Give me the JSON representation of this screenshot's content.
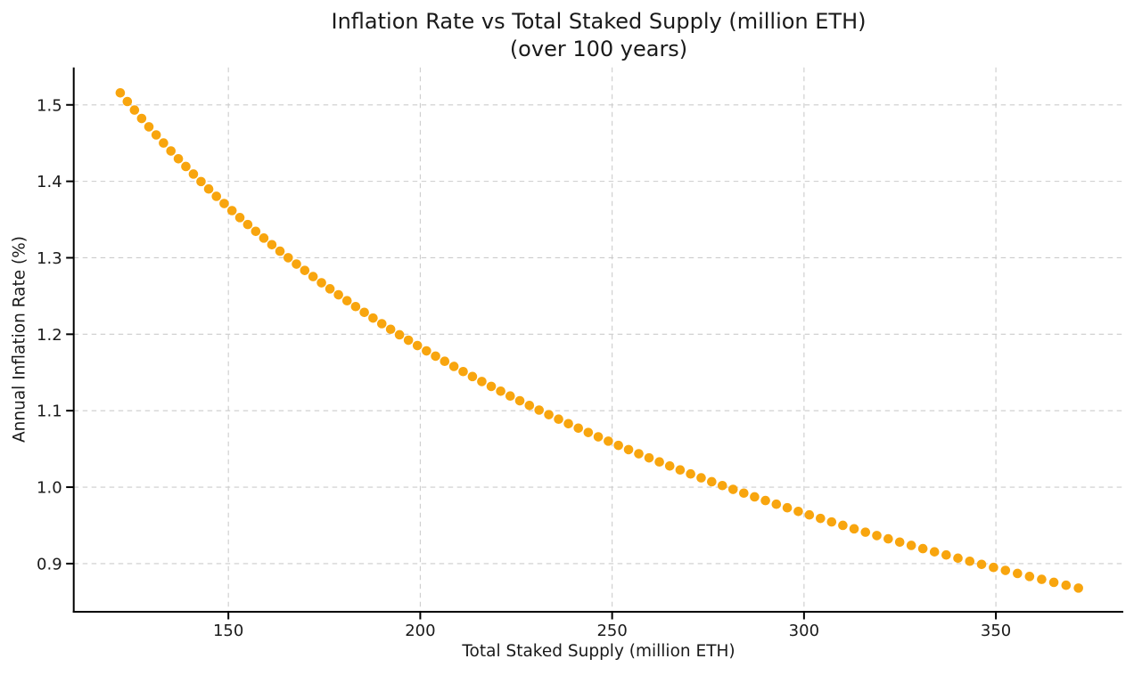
{
  "chart_data": {
    "type": "scatter",
    "title": "Inflation Rate vs Total Staked Supply (million ETH)",
    "subtitle": "(over 100 years)",
    "xlabel": "Total Staked Supply (million ETH)",
    "ylabel": "Annual Inflation Rate (%)",
    "xlim": [
      109.7,
      383.2
    ],
    "ylim": [
      0.837,
      1.549
    ],
    "xticks": [
      150,
      200,
      250,
      300,
      350
    ],
    "xtick_labels": [
      "150",
      "200",
      "250",
      "300",
      "350"
    ],
    "yticks": [
      0.9,
      1.0,
      1.1,
      1.2,
      1.3,
      1.4,
      1.5
    ],
    "ytick_labels": [
      "0.9",
      "1.0",
      "1.1",
      "1.2",
      "1.3",
      "1.4",
      "1.5"
    ],
    "grid": true,
    "grid_style": "dashed",
    "grid_color": "#cccccc",
    "spine_color": "#000000",
    "marker_color": "#F8A50E",
    "marker_radius": 5.3,
    "legend": null,
    "years_span": 100,
    "points": [
      [
        121.83,
        1.5157
      ],
      [
        123.67,
        1.5044
      ],
      [
        125.53,
        1.4932
      ],
      [
        127.4,
        1.4822
      ],
      [
        129.29,
        1.4713
      ],
      [
        131.19,
        1.4607
      ],
      [
        133.1,
        1.4501
      ],
      [
        135.03,
        1.4397
      ],
      [
        136.97,
        1.4295
      ],
      [
        138.92,
        1.4194
      ],
      [
        140.89,
        1.4095
      ],
      [
        142.87,
        1.3997
      ],
      [
        144.87,
        1.39
      ],
      [
        146.88,
        1.3804
      ],
      [
        148.9,
        1.371
      ],
      [
        150.94,
        1.3617
      ],
      [
        152.99,
        1.3526
      ],
      [
        155.05,
        1.3435
      ],
      [
        157.13,
        1.3346
      ],
      [
        159.23,
        1.3258
      ],
      [
        161.33,
        1.3171
      ],
      [
        163.45,
        1.3086
      ],
      [
        165.59,
        1.3001
      ],
      [
        167.74,
        1.2918
      ],
      [
        169.9,
        1.2835
      ],
      [
        172.07,
        1.2754
      ],
      [
        174.26,
        1.2673
      ],
      [
        176.47,
        1.2594
      ],
      [
        178.69,
        1.2516
      ],
      [
        180.92,
        1.2438
      ],
      [
        183.16,
        1.2362
      ],
      [
        185.42,
        1.2286
      ],
      [
        187.69,
        1.2212
      ],
      [
        189.98,
        1.2138
      ],
      [
        192.28,
        1.2065
      ],
      [
        194.59,
        1.1993
      ],
      [
        196.92,
        1.1922
      ],
      [
        199.26,
        1.1852
      ],
      [
        201.62,
        1.1782
      ],
      [
        203.99,
        1.1714
      ],
      [
        206.37,
        1.1646
      ],
      [
        208.77,
        1.1579
      ],
      [
        211.18,
        1.1512
      ],
      [
        213.6,
        1.1447
      ],
      [
        216.04,
        1.1382
      ],
      [
        218.5,
        1.1318
      ],
      [
        220.96,
        1.1255
      ],
      [
        223.44,
        1.1192
      ],
      [
        225.94,
        1.113
      ],
      [
        228.44,
        1.1069
      ],
      [
        230.97,
        1.1008
      ],
      [
        233.5,
        1.0948
      ],
      [
        236.05,
        1.0889
      ],
      [
        238.61,
        1.083
      ],
      [
        241.19,
        1.0772
      ],
      [
        243.78,
        1.0715
      ],
      [
        246.39,
        1.0658
      ],
      [
        249.01,
        1.0602
      ],
      [
        251.64,
        1.0546
      ],
      [
        254.28,
        1.0491
      ],
      [
        256.94,
        1.0437
      ],
      [
        259.62,
        1.0383
      ],
      [
        262.31,
        1.033
      ],
      [
        265.01,
        1.0277
      ],
      [
        267.72,
        1.0225
      ],
      [
        270.45,
        1.0173
      ],
      [
        273.2,
        1.0122
      ],
      [
        275.95,
        1.0071
      ],
      [
        278.72,
        1.0021
      ],
      [
        281.51,
        0.9971
      ],
      [
        284.31,
        0.9922
      ],
      [
        287.12,
        0.9873
      ],
      [
        289.95,
        0.9825
      ],
      [
        292.79,
        0.9777
      ],
      [
        295.64,
        0.973
      ],
      [
        298.51,
        0.9683
      ],
      [
        301.39,
        0.9637
      ],
      [
        304.29,
        0.9591
      ],
      [
        307.19,
        0.9545
      ],
      [
        310.12,
        0.95
      ],
      [
        313.05,
        0.9455
      ],
      [
        316.01,
        0.9411
      ],
      [
        318.97,
        0.9367
      ],
      [
        321.95,
        0.9324
      ],
      [
        324.94,
        0.9281
      ],
      [
        327.95,
        0.9238
      ],
      [
        330.97,
        0.9196
      ],
      [
        334.0,
        0.9154
      ],
      [
        337.05,
        0.9113
      ],
      [
        340.11,
        0.9071
      ],
      [
        343.19,
        0.9031
      ],
      [
        346.27,
        0.899
      ],
      [
        349.38,
        0.895
      ],
      [
        352.49,
        0.8911
      ],
      [
        355.63,
        0.8871
      ],
      [
        358.77,
        0.8832
      ],
      [
        361.93,
        0.8794
      ],
      [
        365.1,
        0.8755
      ],
      [
        368.29,
        0.8717
      ],
      [
        371.51,
        0.868
      ]
    ]
  }
}
